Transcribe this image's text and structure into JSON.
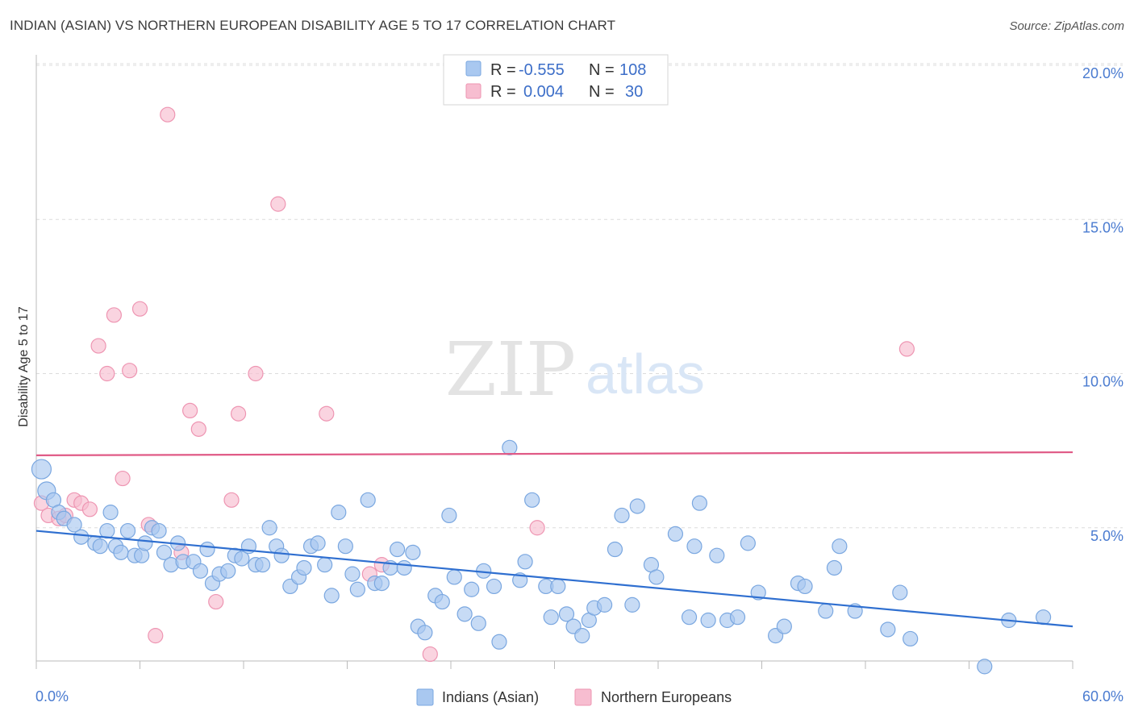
{
  "title": "INDIAN (ASIAN) VS NORTHERN EUROPEAN DISABILITY AGE 5 TO 17 CORRELATION CHART",
  "source": "Source: ZipAtlas.com",
  "watermark": {
    "zip": "ZIP",
    "atlas": "atlas"
  },
  "colors": {
    "blue_fill": "#a9c8f0",
    "blue_stroke": "#7aa7e0",
    "blue_line": "#2f6fd0",
    "pink_fill": "#f7bdd0",
    "pink_stroke": "#ee95b2",
    "pink_line": "#e05a86",
    "tick_text": "#4a7bd0",
    "grid": "#dcdcdc"
  },
  "legend": {
    "rows": [
      {
        "r_label": "R = ",
        "r_value": "-0.555",
        "n_label": "N = ",
        "n_value": "108",
        "series": "blue"
      },
      {
        "r_label": "R = ",
        "r_value": "0.004",
        "n_label": "N = ",
        "n_value": "30",
        "series": "pink"
      }
    ]
  },
  "chart_data": {
    "type": "scatter",
    "title": "INDIAN (ASIAN) VS NORTHERN EUROPEAN DISABILITY AGE 5 TO 17 CORRELATION CHART",
    "xlabel": "",
    "ylabel": "Disability Age 5 to 17",
    "xlim": [
      0,
      60
    ],
    "ylim": [
      0,
      20.5
    ],
    "x_tick_labels": [
      "0.0%",
      "60.0%"
    ],
    "y_ticks": [
      5,
      10,
      15,
      20
    ],
    "y_tick_labels": [
      "5.0%",
      "10.0%",
      "15.0%",
      "20.0%"
    ],
    "grid": true,
    "legend_position": "bottom",
    "series": [
      {
        "name": "Indians (Asian)",
        "color": "#a9c8f0",
        "trend": {
          "x": [
            0,
            60
          ],
          "y": [
            4.9,
            1.8
          ]
        },
        "points": [
          [
            0.3,
            6.9
          ],
          [
            0.6,
            6.2
          ],
          [
            1.0,
            5.9
          ],
          [
            1.3,
            5.5
          ],
          [
            1.6,
            5.3
          ],
          [
            2.2,
            5.1
          ],
          [
            2.6,
            4.7
          ],
          [
            3.4,
            4.5
          ],
          [
            3.7,
            4.4
          ],
          [
            4.3,
            5.5
          ],
          [
            4.1,
            4.9
          ],
          [
            4.6,
            4.4
          ],
          [
            4.9,
            4.2
          ],
          [
            5.3,
            4.9
          ],
          [
            5.7,
            4.1
          ],
          [
            6.1,
            4.1
          ],
          [
            6.3,
            4.5
          ],
          [
            6.7,
            5.0
          ],
          [
            7.1,
            4.9
          ],
          [
            7.4,
            4.2
          ],
          [
            7.8,
            3.8
          ],
          [
            8.2,
            4.5
          ],
          [
            8.5,
            3.9
          ],
          [
            9.1,
            3.9
          ],
          [
            9.5,
            3.6
          ],
          [
            9.9,
            4.3
          ],
          [
            10.2,
            3.2
          ],
          [
            10.6,
            3.5
          ],
          [
            11.1,
            3.6
          ],
          [
            11.5,
            4.1
          ],
          [
            11.9,
            4.0
          ],
          [
            12.3,
            4.4
          ],
          [
            12.7,
            3.8
          ],
          [
            13.1,
            3.8
          ],
          [
            13.5,
            5.0
          ],
          [
            13.9,
            4.4
          ],
          [
            14.2,
            4.1
          ],
          [
            14.7,
            3.1
          ],
          [
            15.2,
            3.4
          ],
          [
            15.5,
            3.7
          ],
          [
            15.9,
            4.4
          ],
          [
            16.3,
            4.5
          ],
          [
            16.7,
            3.8
          ],
          [
            17.1,
            2.8
          ],
          [
            17.5,
            5.5
          ],
          [
            17.9,
            4.4
          ],
          [
            18.3,
            3.5
          ],
          [
            18.6,
            3.0
          ],
          [
            19.2,
            5.9
          ],
          [
            19.6,
            3.2
          ],
          [
            20.0,
            3.2
          ],
          [
            20.5,
            3.7
          ],
          [
            20.9,
            4.3
          ],
          [
            21.3,
            3.7
          ],
          [
            21.8,
            4.2
          ],
          [
            22.1,
            1.8
          ],
          [
            22.5,
            1.6
          ],
          [
            23.1,
            2.8
          ],
          [
            23.5,
            2.6
          ],
          [
            23.9,
            5.4
          ],
          [
            24.2,
            3.4
          ],
          [
            24.8,
            2.2
          ],
          [
            25.2,
            3.0
          ],
          [
            25.6,
            1.9
          ],
          [
            25.9,
            3.6
          ],
          [
            26.5,
            3.1
          ],
          [
            26.8,
            1.3
          ],
          [
            27.4,
            7.6
          ],
          [
            28.0,
            3.3
          ],
          [
            28.3,
            3.9
          ],
          [
            28.7,
            5.9
          ],
          [
            29.5,
            3.1
          ],
          [
            29.8,
            2.1
          ],
          [
            30.2,
            3.1
          ],
          [
            30.7,
            2.2
          ],
          [
            31.1,
            1.8
          ],
          [
            31.6,
            1.5
          ],
          [
            32.0,
            2.0
          ],
          [
            32.3,
            2.4
          ],
          [
            32.9,
            2.5
          ],
          [
            33.5,
            4.3
          ],
          [
            33.9,
            5.4
          ],
          [
            34.5,
            2.5
          ],
          [
            34.8,
            5.7
          ],
          [
            35.6,
            3.8
          ],
          [
            35.9,
            3.4
          ],
          [
            37.0,
            4.8
          ],
          [
            37.8,
            2.1
          ],
          [
            38.1,
            4.4
          ],
          [
            38.4,
            5.8
          ],
          [
            38.9,
            2.0
          ],
          [
            39.4,
            4.1
          ],
          [
            40.0,
            2.0
          ],
          [
            40.6,
            2.1
          ],
          [
            41.2,
            4.5
          ],
          [
            41.8,
            2.9
          ],
          [
            42.8,
            1.5
          ],
          [
            43.3,
            1.8
          ],
          [
            44.1,
            3.2
          ],
          [
            44.5,
            3.1
          ],
          [
            45.7,
            2.3
          ],
          [
            46.2,
            3.7
          ],
          [
            46.5,
            4.4
          ],
          [
            47.4,
            2.3
          ],
          [
            49.3,
            1.7
          ],
          [
            50.0,
            2.9
          ],
          [
            50.6,
            1.4
          ],
          [
            54.9,
            0.5
          ],
          [
            56.3,
            2.0
          ],
          [
            58.3,
            2.1
          ]
        ]
      },
      {
        "name": "Northern Europeans",
        "color": "#f7bdd0",
        "trend": {
          "x": [
            0,
            60
          ],
          "y": [
            7.35,
            7.45
          ]
        },
        "points": [
          [
            0.3,
            5.8
          ],
          [
            0.7,
            5.4
          ],
          [
            1.3,
            5.3
          ],
          [
            1.7,
            5.4
          ],
          [
            2.2,
            5.9
          ],
          [
            2.6,
            5.8
          ],
          [
            3.1,
            5.6
          ],
          [
            3.6,
            10.9
          ],
          [
            4.1,
            10.0
          ],
          [
            4.5,
            11.9
          ],
          [
            5.0,
            6.6
          ],
          [
            5.4,
            10.1
          ],
          [
            6.0,
            12.1
          ],
          [
            6.5,
            5.1
          ],
          [
            6.9,
            1.5
          ],
          [
            7.6,
            18.4
          ],
          [
            8.4,
            4.2
          ],
          [
            8.9,
            8.8
          ],
          [
            9.4,
            8.2
          ],
          [
            10.4,
            2.6
          ],
          [
            11.3,
            5.9
          ],
          [
            11.7,
            8.7
          ],
          [
            12.7,
            10.0
          ],
          [
            14.0,
            15.5
          ],
          [
            16.8,
            8.7
          ],
          [
            19.3,
            3.5
          ],
          [
            20.0,
            3.8
          ],
          [
            22.8,
            0.9
          ],
          [
            29.0,
            5.0
          ],
          [
            50.4,
            10.8
          ]
        ]
      }
    ]
  }
}
